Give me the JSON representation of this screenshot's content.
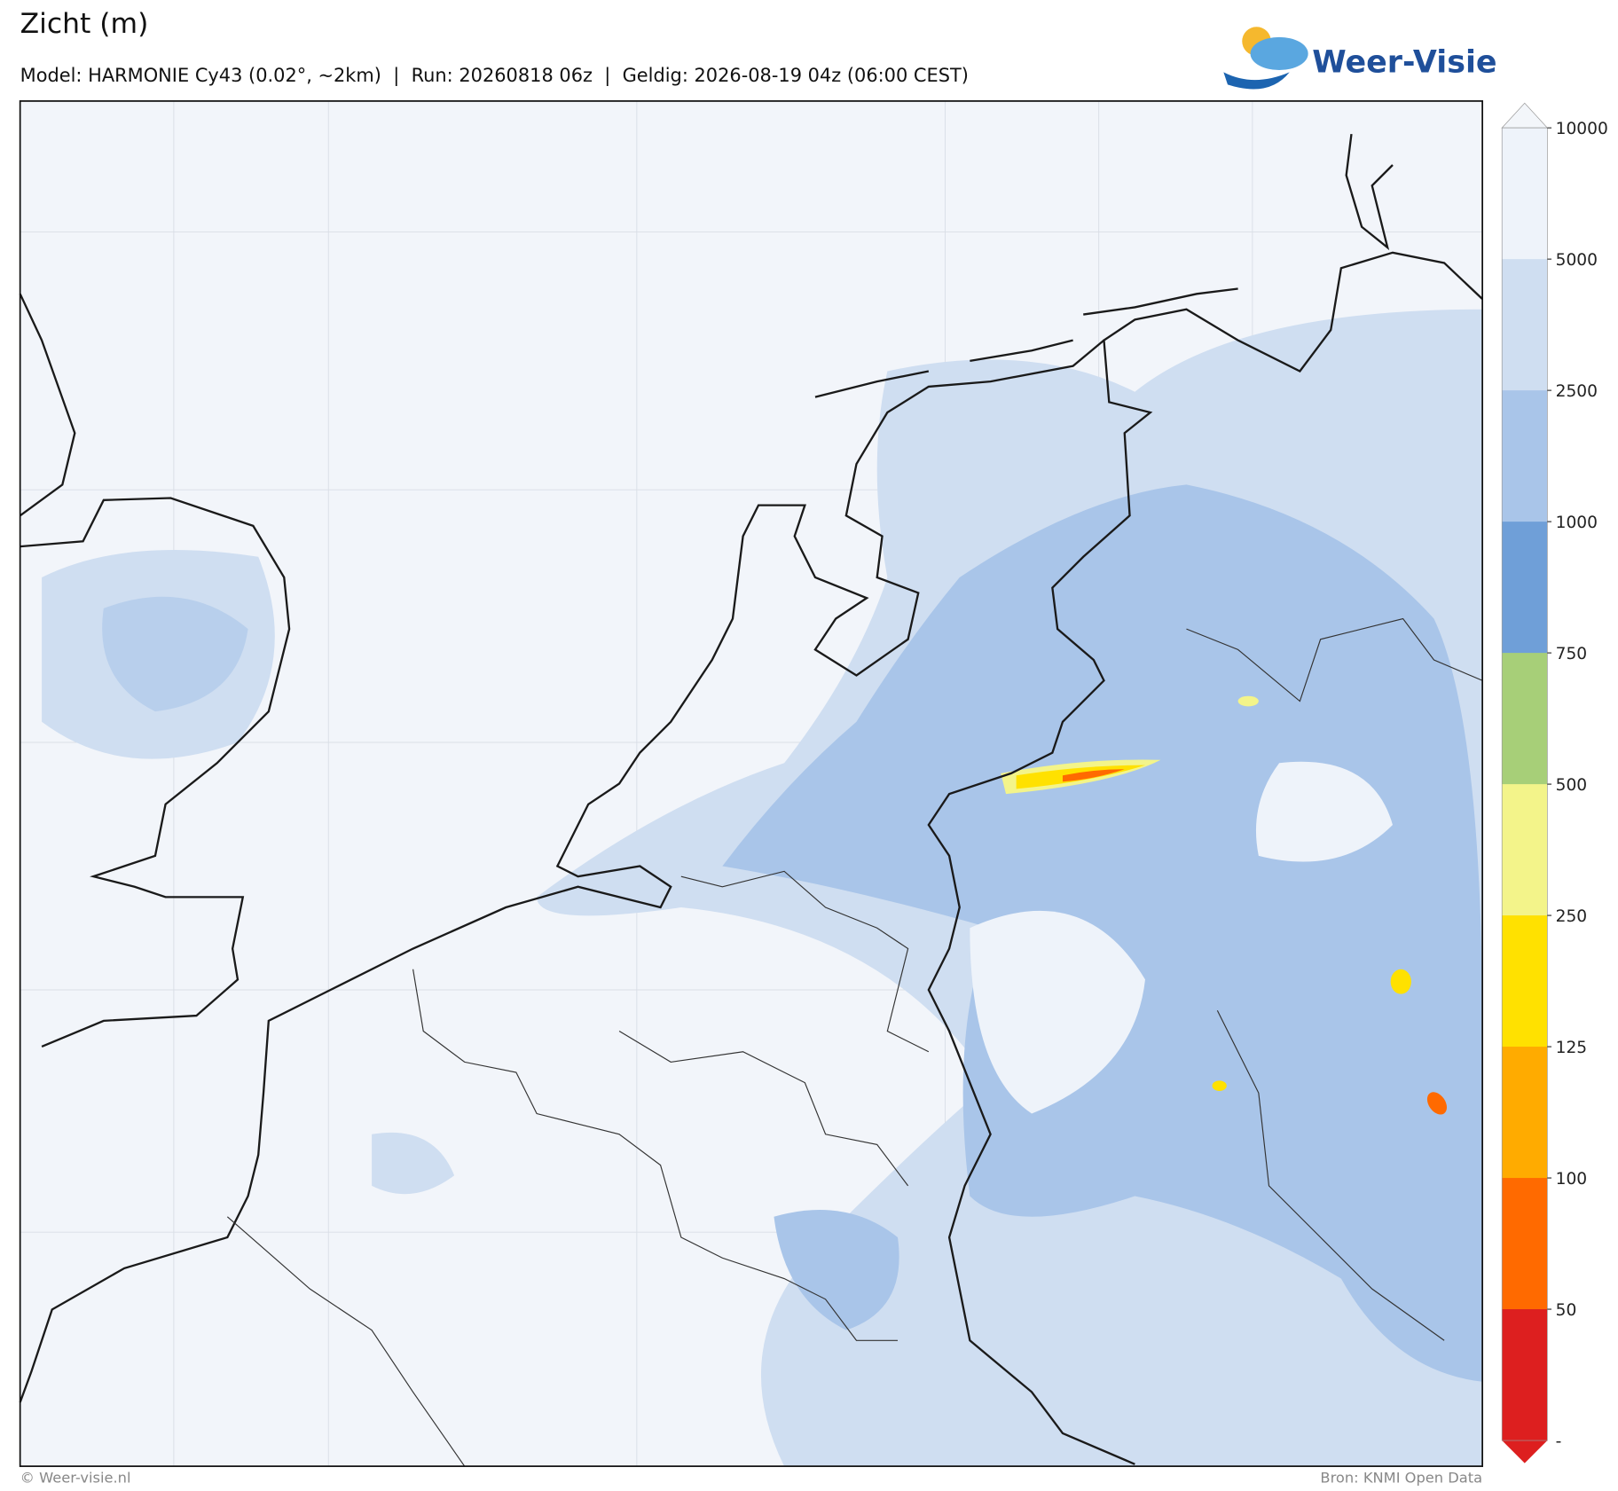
{
  "header": {
    "title": "Zicht (m)",
    "subtitle": "Model: HARMONIE Cy43 (0.02°, ~2km)  |  Run: 20260818 06z  |  Geldig: 2026-08-19 04z (06:00 CEST)",
    "logo": "Weer-Visie"
  },
  "colorbar": {
    "levels": [
      10000,
      5000,
      2500,
      1000,
      750,
      500,
      250,
      125,
      100,
      50
    ],
    "bottom_label": "-",
    "colors": [
      "#eef3fa",
      "#cfdef1",
      "#a9c5e9",
      "#6f9fd8",
      "#a7cf78",
      "#f3f48a",
      "#ffe100",
      "#ffab00",
      "#ff6a00",
      "#dd1f1f"
    ],
    "extend_top_color": "#f3f6fa"
  },
  "footer": {
    "left": "© Weer-visie.nl",
    "right": "Bron: KNMI Open Data"
  }
}
